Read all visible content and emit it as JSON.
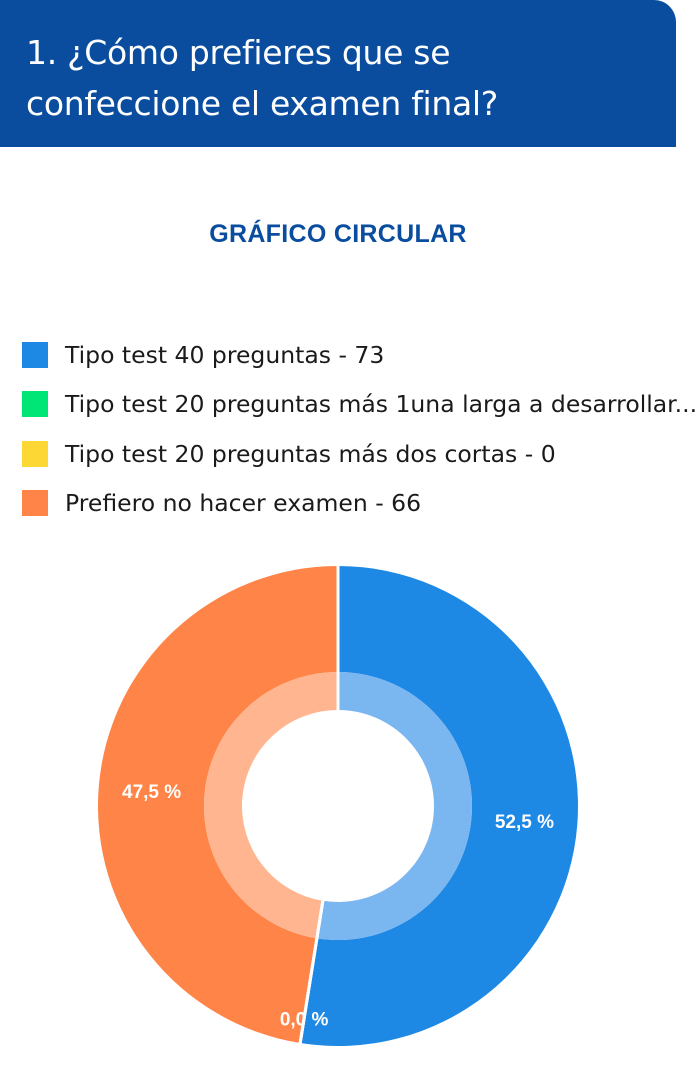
{
  "header": {
    "question": "1. ¿Cómo prefieres que se confeccione el examen final?"
  },
  "chart_data": {
    "type": "pie",
    "variant": "donut",
    "title": "GRÁFICO CIRCULAR",
    "legend_position": "top",
    "series": [
      {
        "label": "Tipo test 40 preguntas - 73",
        "value": 73,
        "percent_label": "52,5 %",
        "color": "#1e88e5",
        "inner_color": "#7ab6f0"
      },
      {
        "label": "Tipo test 20 preguntas más 1una larga a desarrollar...",
        "value": 0,
        "percent_label": "0,0 %",
        "color": "#00e676",
        "inner_color": "#66f0a6"
      },
      {
        "label": "Tipo test 20 preguntas más dos cortas - 0",
        "value": 0,
        "percent_label": "",
        "color": "#fdd835",
        "inner_color": "#fee686"
      },
      {
        "label": "Prefiero no hacer examen - 66",
        "value": 66,
        "percent_label": "47,5 %",
        "color": "#ff8447",
        "inner_color": "#ffb690"
      }
    ]
  }
}
